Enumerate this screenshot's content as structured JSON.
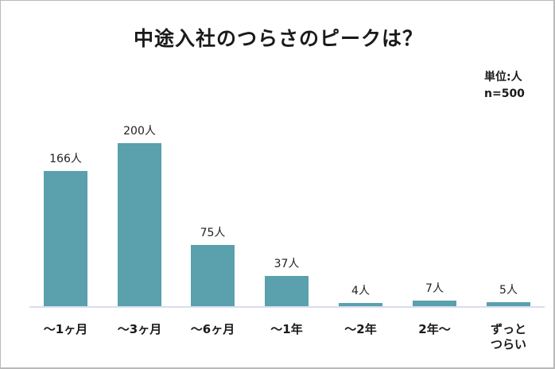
{
  "title": "中途入社のつらさのピークは？",
  "unit_label": "単位:人",
  "sample_label": "n=500",
  "colors": {
    "bar": "#5aa0ad",
    "baseline": "#d9dcef",
    "border": "#b9b9b9"
  },
  "chart_data": {
    "type": "bar",
    "title": "中途入社のつらさのピークは？",
    "xlabel": "",
    "ylabel": "",
    "unit": "人",
    "n": 500,
    "categories": [
      "～1ヶ月",
      "～3ヶ月",
      "～6ヶ月",
      "～1年",
      "～2年",
      "2年～",
      "ずっとつらい"
    ],
    "values": [
      166,
      200,
      75,
      37,
      4,
      7,
      5
    ],
    "value_labels": [
      "166人",
      "200人",
      "75人",
      "37人",
      "4人",
      "7人",
      "5人"
    ],
    "ylim": [
      0,
      200
    ],
    "grid": false,
    "legend": "none"
  },
  "bars": [
    {
      "category_line1": "～1ヶ月",
      "category_line2": "",
      "value": 166,
      "label": "166人"
    },
    {
      "category_line1": "～3ヶ月",
      "category_line2": "",
      "value": 200,
      "label": "200人"
    },
    {
      "category_line1": "～6ヶ月",
      "category_line2": "",
      "value": 75,
      "label": "75人"
    },
    {
      "category_line1": "～1年",
      "category_line2": "",
      "value": 37,
      "label": "37人"
    },
    {
      "category_line1": "～2年",
      "category_line2": "",
      "value": 4,
      "label": "4人"
    },
    {
      "category_line1": "2年～",
      "category_line2": "",
      "value": 7,
      "label": "7人"
    },
    {
      "category_line1": "ずっと",
      "category_line2": "つらい",
      "value": 5,
      "label": "5人"
    }
  ]
}
